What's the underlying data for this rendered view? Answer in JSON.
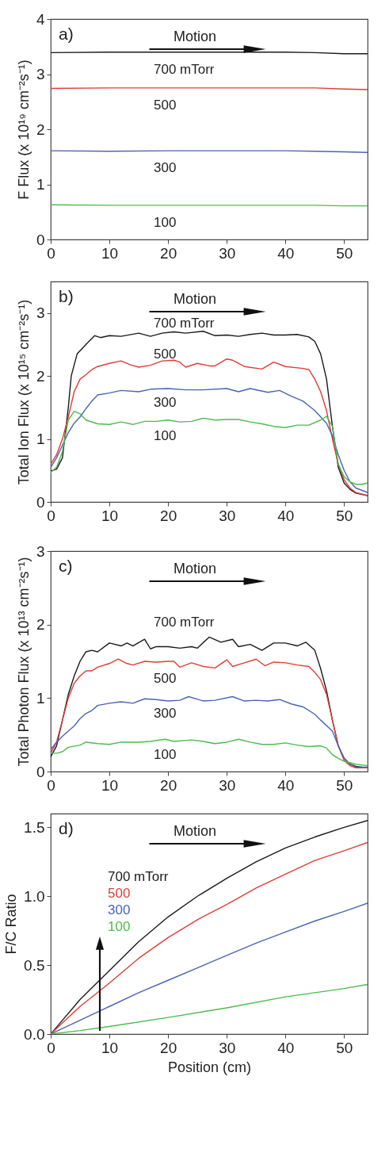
{
  "chart_data": [
    {
      "type": "line",
      "ylabel": "F Flux (x 10¹⁹ cm⁻²s⁻¹)",
      "annotations": [
        "a)",
        "Motion"
      ],
      "xlim": [
        0,
        54
      ],
      "xticks": [
        0,
        10,
        20,
        30,
        40,
        50
      ],
      "ylim": [
        0,
        4
      ],
      "yticks": [
        0,
        1,
        2,
        3,
        4
      ],
      "series": [
        {
          "name": "700 mTorr",
          "color": "#1a1a1a",
          "x": [
            0,
            10,
            20,
            30,
            40,
            45,
            50,
            54
          ],
          "values": [
            3.39,
            3.4,
            3.4,
            3.4,
            3.4,
            3.39,
            3.37,
            3.37
          ]
        },
        {
          "name": "500",
          "color": "#e03c36",
          "x": [
            0,
            10,
            20,
            30,
            40,
            45,
            50,
            54
          ],
          "values": [
            2.74,
            2.75,
            2.75,
            2.75,
            2.75,
            2.75,
            2.73,
            2.72
          ]
        },
        {
          "name": "300",
          "color": "#4a64b4",
          "x": [
            0,
            10,
            20,
            30,
            40,
            45,
            50,
            54
          ],
          "values": [
            1.61,
            1.6,
            1.61,
            1.61,
            1.61,
            1.6,
            1.59,
            1.58
          ]
        },
        {
          "name": "100",
          "color": "#4cbb4c",
          "x": [
            0,
            10,
            20,
            30,
            40,
            45,
            50,
            54
          ],
          "values": [
            0.63,
            0.62,
            0.62,
            0.62,
            0.62,
            0.62,
            0.61,
            0.61
          ]
        }
      ]
    },
    {
      "type": "line",
      "ylabel": "Total Ion Flux (x 10¹⁵ cm⁻²s⁻¹)",
      "annotations": [
        "b)",
        "Motion"
      ],
      "xlim": [
        0,
        54
      ],
      "xticks": [
        0,
        10,
        20,
        30,
        40,
        50
      ],
      "ylim": [
        0,
        3.5
      ],
      "yticks": [
        0,
        1,
        2,
        3
      ],
      "series": [
        {
          "name": "700 mTorr",
          "color": "#1a1a1a",
          "x": [
            0,
            1,
            2,
            3,
            3.5,
            4.5,
            6,
            7.5,
            8.5,
            10,
            12,
            15,
            17,
            19,
            21,
            23,
            26,
            28,
            30,
            32,
            34,
            36,
            38,
            40,
            42,
            44,
            45,
            46,
            47,
            48,
            49,
            50,
            51,
            52,
            54
          ],
          "values": [
            0.49,
            0.52,
            0.7,
            1.5,
            2.0,
            2.35,
            2.5,
            2.64,
            2.61,
            2.64,
            2.63,
            2.68,
            2.63,
            2.68,
            2.7,
            2.68,
            2.71,
            2.64,
            2.65,
            2.63,
            2.66,
            2.68,
            2.65,
            2.65,
            2.66,
            2.62,
            2.55,
            2.35,
            1.95,
            1.2,
            0.55,
            0.3,
            0.2,
            0.14,
            0.1
          ]
        },
        {
          "name": "500",
          "color": "#e03c36",
          "x": [
            0,
            1,
            2,
            3,
            4,
            5,
            6,
            7,
            8,
            10,
            12,
            13.5,
            15,
            17,
            19,
            21,
            22,
            23,
            25,
            27,
            28,
            30,
            31,
            33,
            36,
            38,
            40,
            43,
            44,
            45,
            46,
            47,
            48,
            49,
            50,
            51,
            52,
            54
          ],
          "values": [
            0.6,
            0.75,
            1.0,
            1.35,
            1.75,
            1.95,
            2.02,
            2.1,
            2.15,
            2.2,
            2.24,
            2.18,
            2.14,
            2.17,
            2.24,
            2.25,
            2.22,
            2.14,
            2.2,
            2.16,
            2.16,
            2.27,
            2.25,
            2.15,
            2.11,
            2.22,
            2.15,
            2.12,
            2.1,
            1.95,
            1.75,
            1.45,
            1.0,
            0.6,
            0.35,
            0.22,
            0.15,
            0.1
          ]
        },
        {
          "name": "300",
          "color": "#4a64b4",
          "x": [
            0,
            1,
            2,
            3,
            4,
            5,
            6,
            7,
            8,
            10,
            12,
            15,
            17,
            20,
            23,
            26,
            30,
            32,
            34,
            37,
            39,
            41,
            43,
            45,
            47,
            48,
            49,
            50,
            51,
            52,
            54
          ],
          "values": [
            0.55,
            0.7,
            0.9,
            1.1,
            1.25,
            1.35,
            1.48,
            1.6,
            1.7,
            1.73,
            1.77,
            1.75,
            1.79,
            1.8,
            1.78,
            1.78,
            1.8,
            1.75,
            1.8,
            1.74,
            1.77,
            1.68,
            1.6,
            1.45,
            1.25,
            1.05,
            0.75,
            0.5,
            0.32,
            0.22,
            0.15
          ]
        },
        {
          "name": "100",
          "color": "#4cbb4c",
          "x": [
            0,
            1,
            2,
            3,
            4,
            5,
            6,
            8,
            10,
            12,
            14,
            16,
            18,
            20,
            22,
            24,
            26,
            28,
            30,
            32,
            34,
            36,
            38,
            40,
            42,
            44,
            46,
            47,
            48,
            49,
            50,
            51,
            52,
            53,
            54
          ],
          "values": [
            0.47,
            0.55,
            0.8,
            1.3,
            1.44,
            1.4,
            1.3,
            1.24,
            1.23,
            1.27,
            1.23,
            1.28,
            1.28,
            1.3,
            1.27,
            1.28,
            1.33,
            1.3,
            1.31,
            1.31,
            1.27,
            1.24,
            1.2,
            1.18,
            1.22,
            1.22,
            1.3,
            1.36,
            1.2,
            0.6,
            0.4,
            0.32,
            0.28,
            0.28,
            0.3
          ]
        }
      ]
    },
    {
      "type": "line",
      "ylabel": "Total Photon Flux (x 10¹³ cm⁻²s⁻¹)",
      "annotations": [
        "c)",
        "Motion"
      ],
      "xlim": [
        0,
        54
      ],
      "xticks": [
        0,
        10,
        20,
        30,
        40,
        50
      ],
      "ylim": [
        0,
        3
      ],
      "yticks": [
        0,
        1,
        2,
        3
      ],
      "series": [
        {
          "name": "700 mTorr",
          "color": "#1a1a1a",
          "x": [
            0,
            1,
            2,
            3,
            4,
            5,
            6,
            7,
            8,
            10,
            12,
            13,
            14,
            16,
            17,
            18,
            20,
            22,
            24,
            25,
            27,
            29,
            31,
            32,
            34,
            36,
            38,
            40,
            42,
            43.5,
            45,
            46,
            47,
            48,
            49,
            50,
            51,
            52,
            54
          ],
          "values": [
            0.2,
            0.35,
            0.7,
            1.05,
            1.3,
            1.5,
            1.63,
            1.65,
            1.63,
            1.75,
            1.71,
            1.75,
            1.71,
            1.8,
            1.67,
            1.7,
            1.7,
            1.68,
            1.7,
            1.68,
            1.83,
            1.76,
            1.8,
            1.7,
            1.73,
            1.65,
            1.75,
            1.75,
            1.71,
            1.76,
            1.65,
            1.4,
            1.1,
            0.7,
            0.35,
            0.18,
            0.1,
            0.07,
            0.05
          ]
        },
        {
          "name": "500",
          "color": "#e03c36",
          "x": [
            0,
            1,
            2,
            3,
            4,
            5,
            6,
            7,
            8,
            10,
            11.5,
            13,
            14,
            16,
            18,
            20,
            21,
            22,
            24,
            26,
            28,
            30,
            31,
            33,
            35,
            36.5,
            38,
            40,
            42,
            44,
            45,
            46,
            47,
            48,
            49,
            50,
            51,
            52,
            54
          ],
          "values": [
            0.25,
            0.4,
            0.7,
            1.0,
            1.2,
            1.3,
            1.37,
            1.37,
            1.42,
            1.47,
            1.53,
            1.47,
            1.45,
            1.5,
            1.49,
            1.5,
            1.5,
            1.42,
            1.48,
            1.43,
            1.41,
            1.52,
            1.43,
            1.48,
            1.53,
            1.44,
            1.49,
            1.48,
            1.45,
            1.43,
            1.35,
            1.25,
            1.05,
            0.7,
            0.35,
            0.15,
            0.08,
            0.05,
            0.05
          ]
        },
        {
          "name": "300",
          "color": "#4a64b4",
          "x": [
            0,
            1,
            2,
            3,
            4,
            5,
            6,
            7,
            8,
            10,
            12,
            14,
            16,
            18,
            20,
            22,
            23.5,
            26,
            28,
            31,
            33,
            35,
            37,
            39,
            41,
            43,
            45,
            46,
            48,
            49,
            50,
            51,
            52,
            54
          ],
          "values": [
            0.3,
            0.4,
            0.48,
            0.55,
            0.62,
            0.72,
            0.79,
            0.83,
            0.9,
            0.93,
            0.95,
            0.93,
            0.99,
            0.98,
            0.96,
            0.97,
            1.02,
            0.96,
            0.97,
            1.02,
            0.96,
            0.97,
            0.96,
            0.98,
            0.92,
            0.88,
            0.78,
            0.7,
            0.55,
            0.35,
            0.18,
            0.1,
            0.06,
            0.06
          ]
        },
        {
          "name": "100",
          "color": "#4cbb4c",
          "x": [
            0,
            1,
            2,
            3,
            5,
            6,
            8,
            10,
            12,
            15,
            17,
            19.5,
            21,
            24,
            26,
            28,
            30,
            32,
            34,
            36,
            38,
            40,
            42,
            44,
            46,
            47,
            48,
            49,
            50,
            52,
            54
          ],
          "values": [
            0.25,
            0.25,
            0.27,
            0.33,
            0.36,
            0.4,
            0.38,
            0.37,
            0.4,
            0.4,
            0.41,
            0.44,
            0.41,
            0.43,
            0.41,
            0.38,
            0.4,
            0.44,
            0.4,
            0.37,
            0.37,
            0.39,
            0.36,
            0.34,
            0.35,
            0.32,
            0.23,
            0.18,
            0.14,
            0.1,
            0.08
          ]
        }
      ]
    },
    {
      "type": "line",
      "xlabel": "Position (cm)",
      "ylabel": "F/C Ratio",
      "annotations": [
        "d)",
        "Motion"
      ],
      "xlim": [
        0,
        54
      ],
      "xticks": [
        0,
        10,
        20,
        30,
        40,
        50
      ],
      "ylim": [
        0,
        1.6
      ],
      "yticks": [
        {
          "value": 0,
          "label": "0.0"
        },
        0.5,
        {
          "value": 1,
          "label": "1.0"
        },
        1.5
      ],
      "series": [
        {
          "name": "700 mTorr",
          "color": "#1a1a1a",
          "x": [
            0,
            2,
            5,
            10,
            15,
            20,
            25,
            30,
            35,
            40,
            45,
            50,
            54
          ],
          "values": [
            0,
            0.1,
            0.25,
            0.46,
            0.67,
            0.85,
            1.0,
            1.13,
            1.25,
            1.35,
            1.43,
            1.5,
            1.55
          ]
        },
        {
          "name": "500",
          "color": "#e03c36",
          "x": [
            0,
            2,
            5,
            10,
            15,
            20,
            25,
            30,
            35,
            40,
            45,
            50,
            54
          ],
          "values": [
            0,
            0.08,
            0.2,
            0.37,
            0.55,
            0.7,
            0.83,
            0.94,
            1.06,
            1.16,
            1.26,
            1.33,
            1.39
          ]
        },
        {
          "name": "300",
          "color": "#4a64b4",
          "x": [
            0,
            5,
            10,
            15,
            20,
            25,
            30,
            35,
            40,
            45,
            50,
            54
          ],
          "values": [
            0,
            0.1,
            0.2,
            0.3,
            0.39,
            0.48,
            0.57,
            0.66,
            0.74,
            0.82,
            0.89,
            0.95
          ]
        },
        {
          "name": "100",
          "color": "#4cbb4c",
          "x": [
            0,
            5,
            10,
            20,
            30,
            40,
            50,
            54
          ],
          "values": [
            0,
            0.025,
            0.055,
            0.12,
            0.19,
            0.27,
            0.33,
            0.36
          ]
        }
      ]
    }
  ]
}
